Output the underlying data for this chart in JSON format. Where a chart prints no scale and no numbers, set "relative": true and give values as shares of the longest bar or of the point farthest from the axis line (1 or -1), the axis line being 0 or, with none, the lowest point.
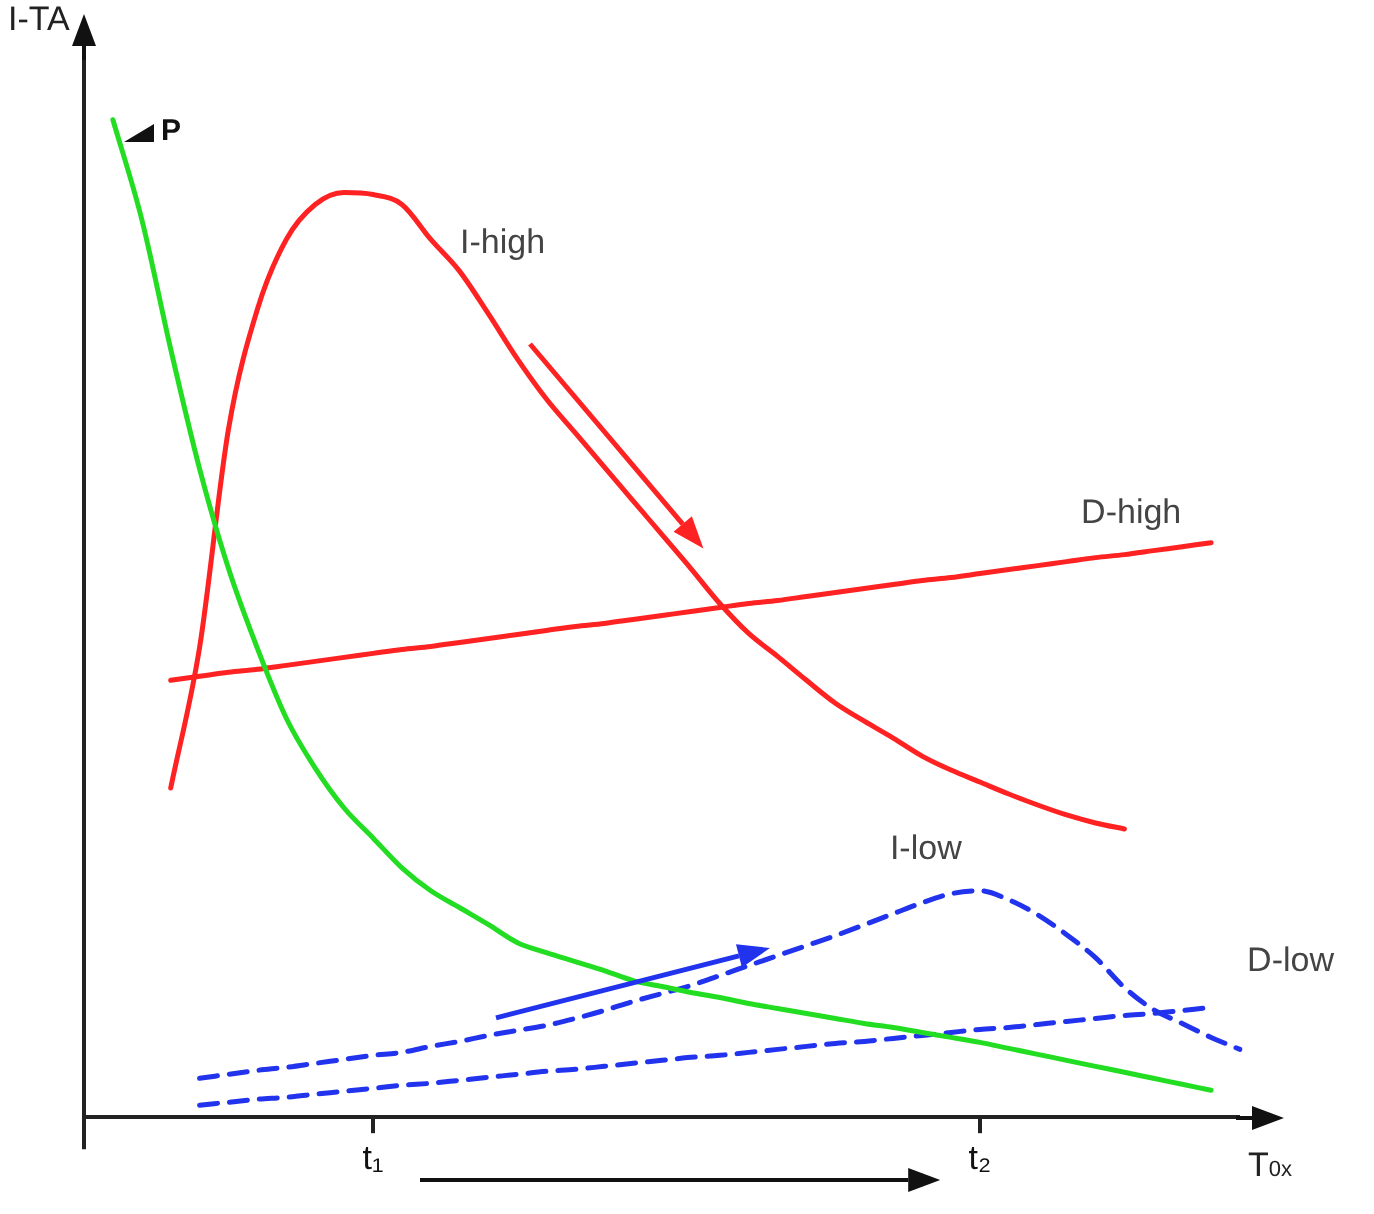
{
  "chart_data": {
    "type": "line",
    "relative": true,
    "xlabel": "T$_{0x}$",
    "ylabel": "I-TA",
    "grid": false,
    "legend": false,
    "marker": "none",
    "annotations": [
      "P"
    ],
    "categories": [
      null,
      null,
      null,
      null,
      null,
      null,
      null,
      null,
      null,
      null,
      "t₁",
      null,
      null,
      null,
      null,
      null,
      null,
      null,
      null,
      null,
      null,
      null,
      null,
      null,
      null,
      null,
      null,
      null,
      null,
      null,
      null,
      "t₂",
      null,
      null,
      null,
      null,
      null,
      null,
      null,
      null,
      null
    ],
    "series": [
      {
        "color": "#22dd22",
        "line_style": "solid",
        "values": [
          null,
          1.0,
          0.9,
          0.77,
          0.65,
          0.55,
          0.47,
          0.4,
          0.35,
          0.31,
          0.28,
          0.25,
          0.227,
          0.21,
          0.193,
          0.175,
          0.165,
          0.156,
          0.147,
          0.137,
          0.131,
          0.125,
          0.12,
          0.114,
          0.109,
          0.104,
          0.099,
          0.094,
          0.09,
          0.085,
          0.08,
          0.075,
          0.069,
          0.063,
          0.057,
          0.051,
          0.045,
          0.039,
          0.033,
          0.027,
          null
        ]
      },
      {
        "name": "I-high",
        "color": "#ff2222",
        "line_style": "solid",
        "values": [
          null,
          null,
          null,
          0.33,
          0.471,
          0.69,
          0.81,
          0.88,
          0.915,
          0.927,
          0.925,
          0.915,
          0.88,
          0.848,
          0.805,
          0.76,
          0.72,
          0.686,
          0.652,
          0.618,
          0.584,
          0.55,
          0.515,
          0.485,
          0.462,
          0.438,
          0.415,
          0.397,
          0.38,
          0.362,
          0.348,
          0.336,
          0.324,
          0.313,
          0.303,
          0.295,
          0.289,
          null,
          null,
          null,
          null
        ]
      },
      {
        "name": "D-high",
        "color": "#ff2222",
        "line_style": "solid",
        "values": [
          null,
          null,
          null,
          0.438,
          0.442,
          0.446,
          0.449,
          0.453,
          0.457,
          0.461,
          0.465,
          0.469,
          0.472,
          0.476,
          0.48,
          0.484,
          0.488,
          0.492,
          0.495,
          0.499,
          0.503,
          0.507,
          0.511,
          0.515,
          0.518,
          0.522,
          0.526,
          0.53,
          0.534,
          0.538,
          0.541,
          0.545,
          0.549,
          0.553,
          0.557,
          0.561,
          0.564,
          0.568,
          0.572,
          0.576,
          null
        ]
      },
      {
        "name": "I-low",
        "color": "#2233ee",
        "line_style": "dashed",
        "values": [
          null,
          null,
          null,
          null,
          0.039,
          0.043,
          0.047,
          0.05,
          0.054,
          0.058,
          0.062,
          0.065,
          0.071,
          0.076,
          0.082,
          0.087,
          0.092,
          0.099,
          0.107,
          0.116,
          0.124,
          0.132,
          0.142,
          0.152,
          0.162,
          0.172,
          0.182,
          0.193,
          0.204,
          0.215,
          0.224,
          0.227,
          0.218,
          0.203,
          0.183,
          0.16,
          0.13,
          0.108,
          0.094,
          0.08,
          0.068
        ]
      },
      {
        "name": "D-low",
        "color": "#2233ee",
        "line_style": "dashed",
        "values": [
          null,
          null,
          null,
          null,
          0.012,
          0.015,
          0.018,
          0.02,
          0.023,
          0.026,
          0.029,
          0.032,
          0.034,
          0.037,
          0.04,
          0.043,
          0.046,
          0.048,
          0.051,
          0.054,
          0.057,
          0.06,
          0.062,
          0.065,
          0.068,
          0.071,
          0.074,
          0.076,
          0.079,
          0.082,
          0.085,
          0.088,
          0.09,
          0.093,
          0.096,
          0.099,
          0.102,
          0.104,
          0.107,
          0.11,
          null
        ]
      }
    ]
  }
}
